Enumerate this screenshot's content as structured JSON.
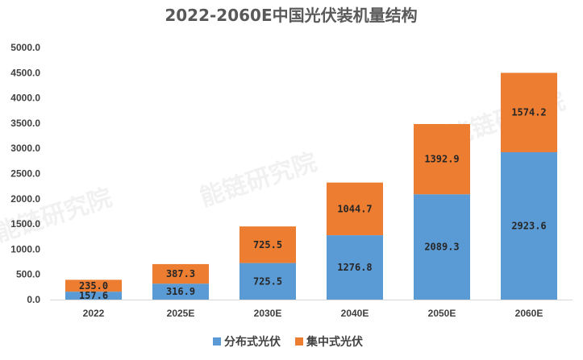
{
  "chart_data": {
    "type": "bar",
    "stacked": true,
    "title": "2022-2060E中国光伏装机量结构",
    "categories": [
      "2022",
      "2025E",
      "2030E",
      "2040E",
      "2050E",
      "2060E"
    ],
    "series": [
      {
        "name": "分布式光伏",
        "color": "#5b9bd5",
        "values": [
          157.6,
          316.9,
          725.5,
          1276.8,
          2089.3,
          2923.6
        ],
        "labels": [
          "157.6",
          "316.9",
          "725.5",
          "1276.8",
          "2089.3",
          "2923.6"
        ]
      },
      {
        "name": "集中式光伏",
        "color": "#ed7d31",
        "values": [
          235.0,
          387.3,
          725.5,
          1044.7,
          1392.9,
          1574.2
        ],
        "labels": [
          "235.0",
          "387.3",
          "725.5",
          "1044.7",
          "1392.9",
          "1574.2"
        ]
      }
    ],
    "ylim": [
      0,
      5000
    ],
    "yticks": [
      "0.0",
      "500.0",
      "1000.0",
      "1500.0",
      "2000.0",
      "2500.0",
      "3000.0",
      "3500.0",
      "4000.0",
      "4500.0",
      "5000.0"
    ],
    "xlabel": "",
    "ylabel": "",
    "grid": false,
    "legend_position": "bottom",
    "watermark": "能链研究院"
  }
}
